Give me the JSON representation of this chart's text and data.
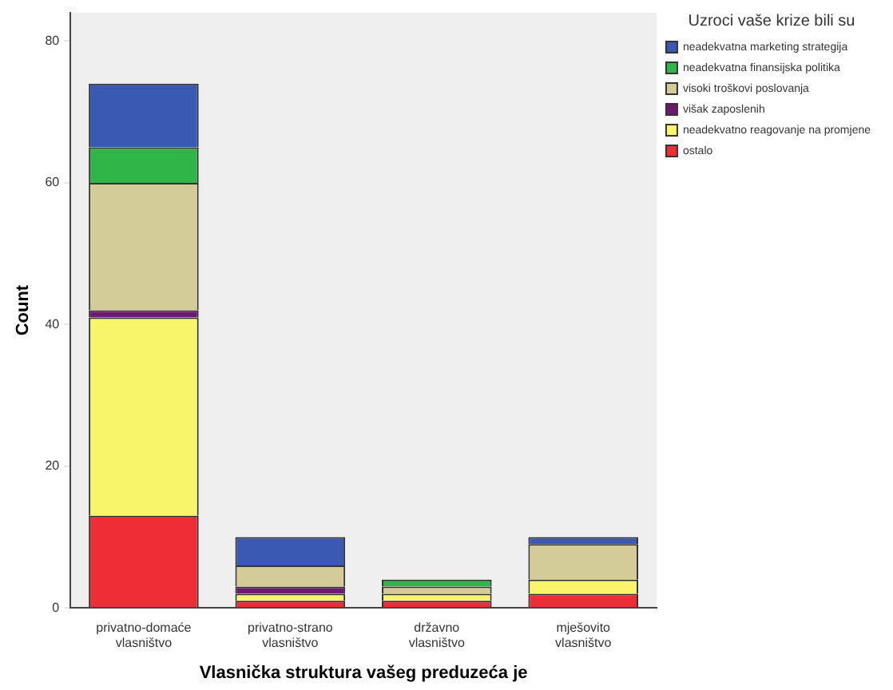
{
  "chart_data": {
    "type": "bar",
    "stacked": true,
    "xlabel": "Vlasnička struktura vašeg preduzeća je",
    "ylabel": "Count",
    "legend_title": "Uzroci vaše krize bili su",
    "legend": "right",
    "grid": false,
    "categories": [
      "privatno-domaće vlasništvo",
      "privatno-strano vlasništvo",
      "državno vlasništvo",
      "mješovito vlasništvo"
    ],
    "ylim": [
      0,
      84
    ],
    "yticks": [
      0,
      20,
      40,
      60,
      80
    ],
    "series": [
      {
        "name": "ostalo",
        "color": "#ee2d36",
        "values": [
          13,
          1,
          1,
          2
        ]
      },
      {
        "name": "neadekvatno reagovanje na promjene",
        "color": "#f8f56a",
        "values": [
          28,
          1,
          1,
          2
        ]
      },
      {
        "name": "višak zaposlenih",
        "color": "#6e1a70",
        "values": [
          1,
          1,
          0,
          0
        ]
      },
      {
        "name": "visoki troškovi poslovanja",
        "color": "#d4cc98",
        "values": [
          18,
          3,
          1,
          5
        ]
      },
      {
        "name": "neadekvatna finansijska politika",
        "color": "#2fb548",
        "values": [
          5,
          0,
          1,
          0
        ]
      },
      {
        "name": "neadekvatna marketing strategija",
        "color": "#3a59b3",
        "values": [
          9,
          4,
          0,
          1
        ]
      }
    ]
  }
}
